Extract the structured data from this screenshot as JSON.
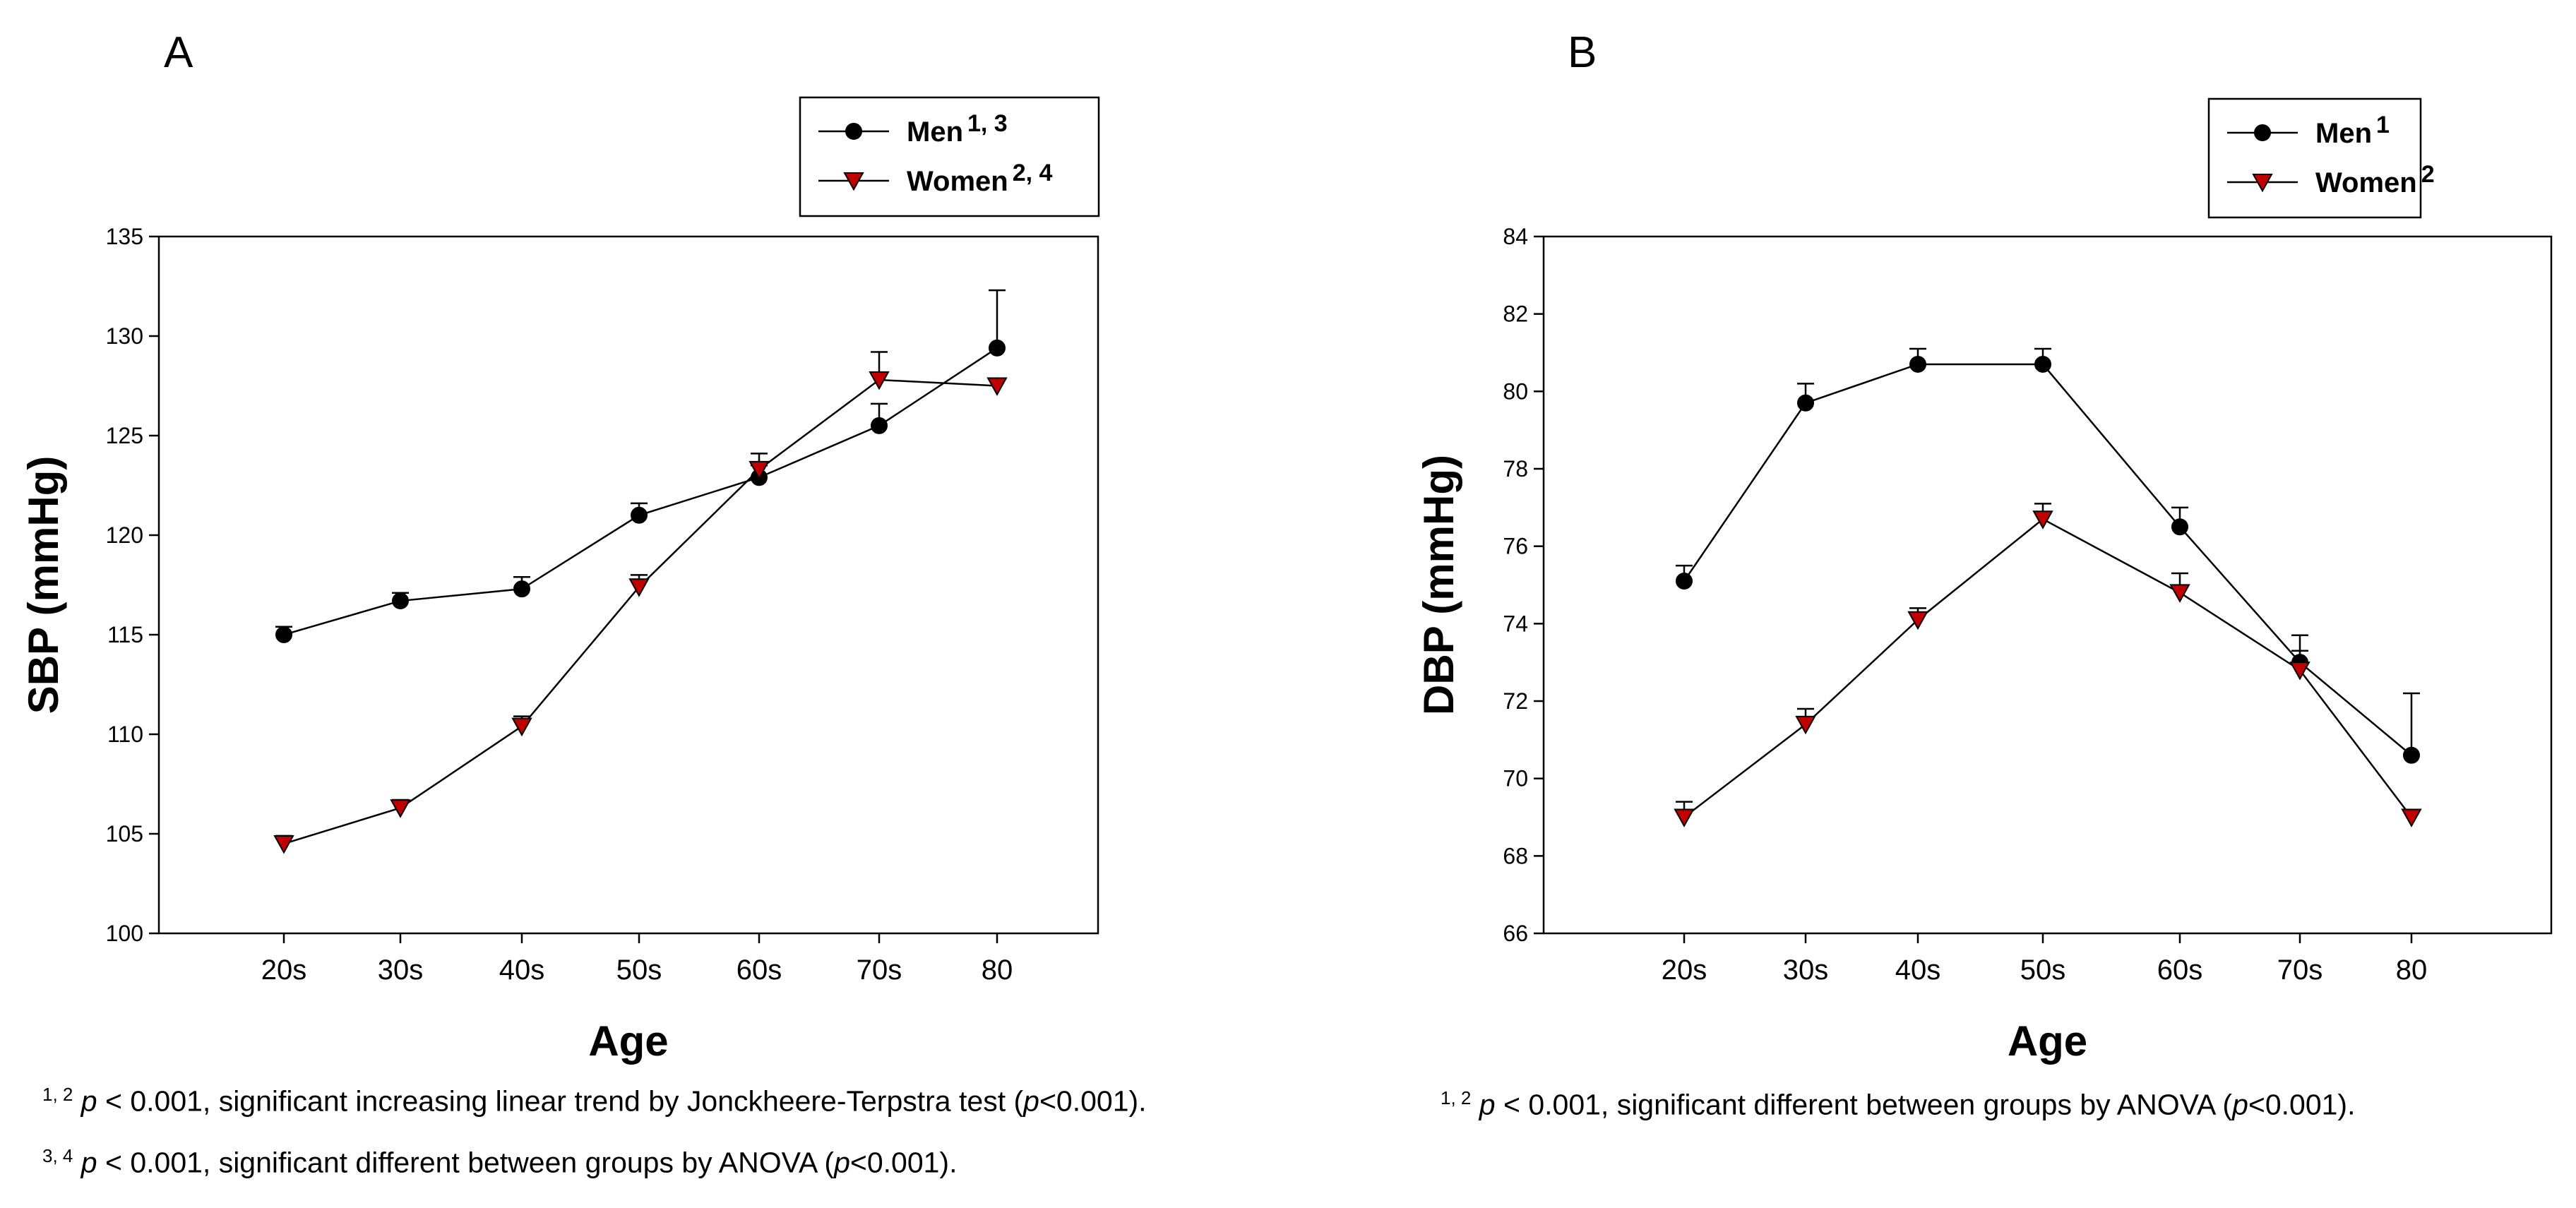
{
  "chart_data": [
    {
      "type": "line",
      "panel_label": "A",
      "xlabel": "Age",
      "ylabel": "SBP (mmHg)",
      "categories": [
        "20s",
        "30s",
        "40s",
        "50s",
        "60s",
        "70s",
        "80"
      ],
      "ylim": [
        100,
        135
      ],
      "yticks": [
        100,
        105,
        110,
        115,
        120,
        125,
        130,
        135
      ],
      "legend_position": "top-right",
      "series": [
        {
          "name": "Men",
          "sup": "1, 3",
          "marker": "circle",
          "color": "#000000",
          "values": [
            115.0,
            116.7,
            117.3,
            121.0,
            122.9,
            125.5,
            129.4
          ],
          "errors": [
            0.4,
            0.4,
            0.6,
            0.6,
            0.6,
            1.1,
            2.9
          ]
        },
        {
          "name": "Women",
          "sup": "2, 4",
          "marker": "triangle-down",
          "color": "#c00000",
          "values": [
            104.5,
            106.3,
            110.4,
            117.4,
            123.3,
            127.8,
            127.5
          ],
          "errors": [
            0.4,
            0.4,
            0.5,
            0.6,
            0.8,
            1.4,
            0.0
          ]
        }
      ]
    },
    {
      "type": "line",
      "panel_label": "B",
      "xlabel": "Age",
      "ylabel": "DBP (mmHg)",
      "categories": [
        "20s",
        "30s",
        "40s",
        "50s",
        "60s",
        "70s",
        "80"
      ],
      "ylim": [
        66,
        84
      ],
      "yticks": [
        66,
        68,
        70,
        72,
        74,
        76,
        78,
        80,
        82,
        84
      ],
      "legend_position": "top-right",
      "series": [
        {
          "name": "Men",
          "sup": "1",
          "marker": "circle",
          "color": "#000000",
          "values": [
            75.1,
            79.7,
            80.7,
            80.7,
            76.5,
            73.0,
            70.6
          ],
          "errors": [
            0.4,
            0.5,
            0.4,
            0.4,
            0.5,
            0.7,
            1.6
          ]
        },
        {
          "name": "Women",
          "sup": "2",
          "marker": "triangle-down",
          "color": "#c00000",
          "values": [
            69.0,
            71.4,
            74.1,
            76.7,
            74.8,
            72.8,
            69.0
          ],
          "errors": [
            0.4,
            0.4,
            0.3,
            0.4,
            0.5,
            0.5,
            0.0
          ]
        }
      ]
    }
  ],
  "footnotes": {
    "a1": {
      "sup": "1, 2",
      "p": "p",
      "text_a": " < 0.001, significant increasing linear trend by Jonckheere-Terpstra test (",
      "p2": "p",
      "text_b": "<0.001)."
    },
    "a2": {
      "sup": "3, 4",
      "p": "p",
      "text_a": " < 0.001, significant different between groups by ANOVA (",
      "p2": "p",
      "text_b": "<0.001)."
    },
    "b1": {
      "sup": "1, 2",
      "p": "p",
      "text_a": " < 0.001, significant different between groups by ANOVA (",
      "p2": "p",
      "text_b": "<0.001)."
    }
  }
}
